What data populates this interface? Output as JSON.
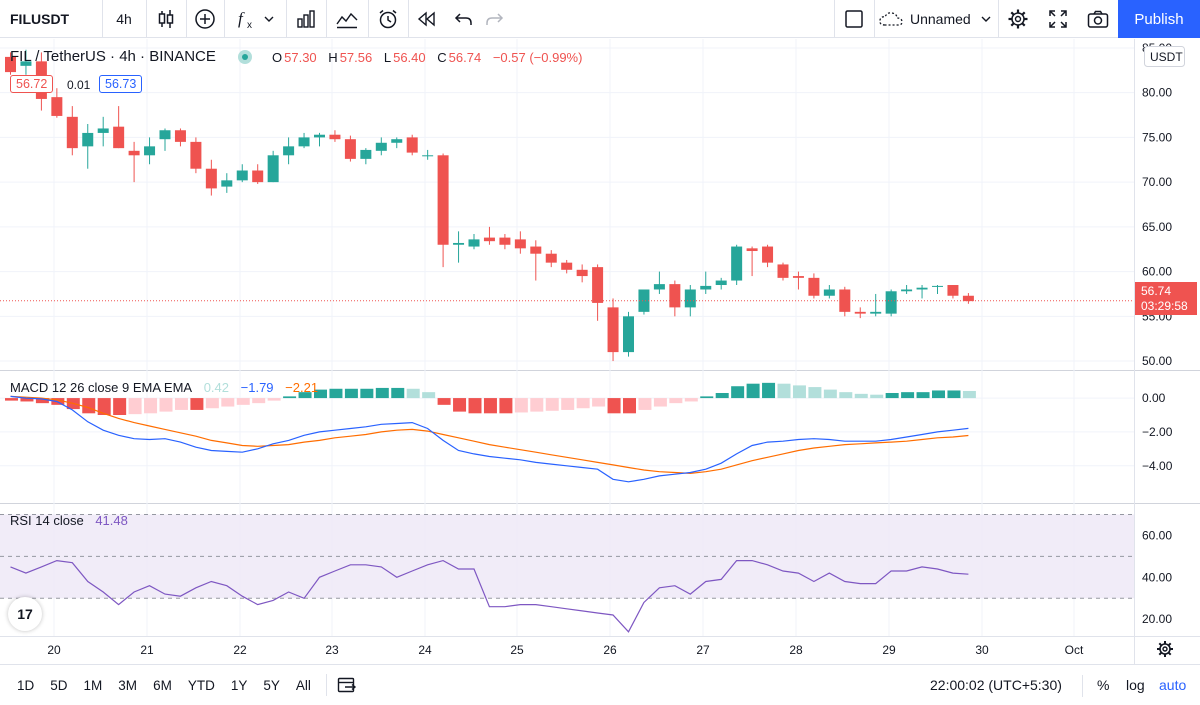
{
  "toolbar": {
    "symbol": "FILUSDT",
    "interval": "4h",
    "layout_name": "Unnamed",
    "publish_label": "Publish"
  },
  "legend": {
    "title": "FIL / TetherUS · 4h · BINANCE",
    "o_label": "O",
    "o": "57.30",
    "h_label": "H",
    "h": "57.56",
    "l_label": "L",
    "l": "56.40",
    "c_label": "C",
    "c": "56.74",
    "change": "−0.57 (−0.99%)",
    "bid": "56.72",
    "spread": "0.01",
    "ask": "56.73"
  },
  "price_axis": {
    "currency": "USDT",
    "last_price": "56.74",
    "countdown": "03:29:58"
  },
  "macd_legend": {
    "title": "MACD 12 26 close 9 EMA EMA",
    "hist": "0.42",
    "macd": "−1.79",
    "signal": "−2.21"
  },
  "rsi_legend": {
    "title": "RSI 14 close",
    "value": "41.48"
  },
  "bottom": {
    "ranges": [
      "1D",
      "5D",
      "1M",
      "3M",
      "6M",
      "YTD",
      "1Y",
      "5Y",
      "All"
    ],
    "time": "22:00:02 (UTC+5:30)",
    "percent": "%",
    "log": "log",
    "auto": "auto"
  },
  "logo": "17",
  "colors": {
    "up": "#26a69a",
    "down": "#ef5350",
    "macd_line": "#2962ff",
    "signal_line": "#ff6d00",
    "rsi_line": "#7e57c2",
    "rsi_band": "#ede7f6",
    "hist_up_strong": "#26a69a",
    "hist_up_weak": "#b2dfdb",
    "hist_down_strong": "#ef5350",
    "hist_down_weak": "#ffcdd2",
    "accent": "#2962ff"
  },
  "chart_data": {
    "type": "candlestick",
    "symbol": "FIL / TetherUS",
    "interval": "4h",
    "exchange": "BINANCE",
    "x_tick_labels": [
      "20",
      "21",
      "22",
      "23",
      "24",
      "25",
      "26",
      "27",
      "28",
      "29",
      "30",
      "Oct"
    ],
    "price_ticks": [
      "85.00",
      "80.00",
      "75.00",
      "70.00",
      "65.00",
      "60.00",
      "55.00",
      "50.00"
    ],
    "price_ylim": [
      49,
      86
    ],
    "macd_ticks": [
      "0.00",
      "−2.00",
      "−4.00"
    ],
    "macd_ylim": [
      -6.2,
      1.6
    ],
    "rsi_ticks": [
      "60.00",
      "40.00",
      "20.00"
    ],
    "rsi_ylim": [
      12,
      75
    ],
    "rsi_levels": [
      70,
      50,
      30
    ],
    "candles": [
      {
        "o": 84.0,
        "h": 84.5,
        "l": 82.0,
        "c": 82.3
      },
      {
        "o": 83.0,
        "h": 84.8,
        "l": 82.0,
        "c": 83.5
      },
      {
        "o": 83.5,
        "h": 84.5,
        "l": 78.0,
        "c": 79.3
      },
      {
        "o": 79.5,
        "h": 80.5,
        "l": 77.2,
        "c": 77.4
      },
      {
        "o": 77.3,
        "h": 78.5,
        "l": 73.0,
        "c": 73.8
      },
      {
        "o": 74.0,
        "h": 76.5,
        "l": 71.5,
        "c": 75.5
      },
      {
        "o": 75.5,
        "h": 77.3,
        "l": 74.0,
        "c": 76.0
      },
      {
        "o": 76.2,
        "h": 78.5,
        "l": 73.8,
        "c": 73.8
      },
      {
        "o": 73.5,
        "h": 74.5,
        "l": 70.0,
        "c": 73.0
      },
      {
        "o": 73.0,
        "h": 75.0,
        "l": 72.0,
        "c": 74.0
      },
      {
        "o": 74.8,
        "h": 76.0,
        "l": 73.5,
        "c": 75.8
      },
      {
        "o": 75.8,
        "h": 76.0,
        "l": 74.0,
        "c": 74.5
      },
      {
        "o": 74.5,
        "h": 75.0,
        "l": 71.0,
        "c": 71.5
      },
      {
        "o": 71.5,
        "h": 72.5,
        "l": 68.5,
        "c": 69.3
      },
      {
        "o": 69.5,
        "h": 71.0,
        "l": 68.8,
        "c": 70.2
      },
      {
        "o": 70.2,
        "h": 72.0,
        "l": 70.0,
        "c": 71.3
      },
      {
        "o": 71.3,
        "h": 72.0,
        "l": 69.8,
        "c": 70.0
      },
      {
        "o": 70.0,
        "h": 73.5,
        "l": 70.0,
        "c": 73.0
      },
      {
        "o": 73.0,
        "h": 75.0,
        "l": 72.0,
        "c": 74.0
      },
      {
        "o": 74.0,
        "h": 75.5,
        "l": 73.8,
        "c": 75.0
      },
      {
        "o": 75.0,
        "h": 75.5,
        "l": 74.0,
        "c": 75.3
      },
      {
        "o": 75.3,
        "h": 75.8,
        "l": 74.5,
        "c": 74.8
      },
      {
        "o": 74.8,
        "h": 75.2,
        "l": 72.3,
        "c": 72.6
      },
      {
        "o": 72.6,
        "h": 73.8,
        "l": 72.0,
        "c": 73.6
      },
      {
        "o": 73.5,
        "h": 75.0,
        "l": 73.0,
        "c": 74.4
      },
      {
        "o": 74.4,
        "h": 75.0,
        "l": 73.8,
        "c": 74.8
      },
      {
        "o": 75.0,
        "h": 75.3,
        "l": 73.0,
        "c": 73.3
      },
      {
        "o": 73.0,
        "h": 73.6,
        "l": 72.5,
        "c": 73.0
      },
      {
        "o": 73.0,
        "h": 73.2,
        "l": 60.5,
        "c": 63.0
      },
      {
        "o": 63.0,
        "h": 64.5,
        "l": 61.0,
        "c": 63.2
      },
      {
        "o": 62.8,
        "h": 64.2,
        "l": 62.5,
        "c": 63.6
      },
      {
        "o": 63.8,
        "h": 65.0,
        "l": 63.0,
        "c": 63.4
      },
      {
        "o": 63.8,
        "h": 64.2,
        "l": 62.5,
        "c": 63.0
      },
      {
        "o": 63.6,
        "h": 64.5,
        "l": 62.0,
        "c": 62.6
      },
      {
        "o": 62.8,
        "h": 63.5,
        "l": 59.0,
        "c": 62.0
      },
      {
        "o": 62.0,
        "h": 62.4,
        "l": 60.5,
        "c": 61.0
      },
      {
        "o": 61.0,
        "h": 61.3,
        "l": 59.8,
        "c": 60.2
      },
      {
        "o": 60.2,
        "h": 60.8,
        "l": 58.8,
        "c": 59.5
      },
      {
        "o": 60.5,
        "h": 60.8,
        "l": 54.5,
        "c": 56.5
      },
      {
        "o": 56.0,
        "h": 57.0,
        "l": 50.0,
        "c": 51.0
      },
      {
        "o": 51.0,
        "h": 55.5,
        "l": 50.5,
        "c": 55.0
      },
      {
        "o": 55.5,
        "h": 58.0,
        "l": 55.2,
        "c": 58.0
      },
      {
        "o": 58.0,
        "h": 60.0,
        "l": 57.5,
        "c": 58.6
      },
      {
        "o": 58.6,
        "h": 59.0,
        "l": 55.0,
        "c": 56.0
      },
      {
        "o": 56.0,
        "h": 58.5,
        "l": 55.0,
        "c": 58.0
      },
      {
        "o": 58.0,
        "h": 60.0,
        "l": 57.5,
        "c": 58.4
      },
      {
        "o": 58.5,
        "h": 59.3,
        "l": 58.0,
        "c": 59.0
      },
      {
        "o": 59.0,
        "h": 63.0,
        "l": 58.5,
        "c": 62.8
      },
      {
        "o": 62.6,
        "h": 62.8,
        "l": 59.5,
        "c": 62.3
      },
      {
        "o": 62.8,
        "h": 63.0,
        "l": 60.5,
        "c": 61.0
      },
      {
        "o": 60.8,
        "h": 61.0,
        "l": 59.0,
        "c": 59.3
      },
      {
        "o": 59.5,
        "h": 60.0,
        "l": 58.0,
        "c": 59.3
      },
      {
        "o": 59.3,
        "h": 59.8,
        "l": 57.0,
        "c": 57.3
      },
      {
        "o": 57.3,
        "h": 58.5,
        "l": 57.0,
        "c": 58.0
      },
      {
        "o": 58.0,
        "h": 58.3,
        "l": 55.0,
        "c": 55.5
      },
      {
        "o": 55.5,
        "h": 56.0,
        "l": 54.8,
        "c": 55.3
      },
      {
        "o": 55.3,
        "h": 57.5,
        "l": 55.0,
        "c": 55.5
      },
      {
        "o": 55.3,
        "h": 58.0,
        "l": 55.0,
        "c": 57.8
      },
      {
        "o": 57.8,
        "h": 58.5,
        "l": 57.5,
        "c": 58.0
      },
      {
        "o": 58.0,
        "h": 58.5,
        "l": 57.0,
        "c": 58.2
      },
      {
        "o": 58.3,
        "h": 58.5,
        "l": 57.5,
        "c": 58.4
      },
      {
        "o": 58.5,
        "h": 58.5,
        "l": 57.0,
        "c": 57.3
      },
      {
        "o": 57.3,
        "h": 57.6,
        "l": 56.4,
        "c": 56.7
      }
    ],
    "macd": {
      "hist": [
        -0.15,
        -0.2,
        -0.3,
        -0.4,
        -0.65,
        -0.9,
        -1.0,
        -1.0,
        -0.95,
        -0.9,
        -0.8,
        -0.7,
        -0.7,
        -0.6,
        -0.5,
        -0.4,
        -0.3,
        -0.15,
        0.1,
        0.35,
        0.5,
        0.55,
        0.55,
        0.55,
        0.6,
        0.6,
        0.55,
        0.35,
        -0.4,
        -0.8,
        -0.9,
        -0.9,
        -0.9,
        -0.85,
        -0.8,
        -0.75,
        -0.7,
        -0.6,
        -0.5,
        -0.9,
        -0.9,
        -0.7,
        -0.5,
        -0.3,
        -0.2,
        0.1,
        0.3,
        0.7,
        0.85,
        0.9,
        0.85,
        0.75,
        0.65,
        0.5,
        0.35,
        0.25,
        0.2,
        0.3,
        0.35,
        0.35,
        0.45,
        0.45,
        0.42
      ],
      "macd": [
        0.1,
        0.0,
        -0.05,
        -0.2,
        -0.7,
        -1.4,
        -1.9,
        -2.2,
        -2.4,
        -2.45,
        -2.4,
        -2.6,
        -2.9,
        -3.1,
        -3.15,
        -3.2,
        -3.0,
        -2.7,
        -2.5,
        -2.2,
        -2.0,
        -1.9,
        -1.8,
        -1.7,
        -1.55,
        -1.5,
        -1.45,
        -1.8,
        -2.5,
        -3.1,
        -3.3,
        -3.45,
        -3.55,
        -3.65,
        -3.8,
        -3.9,
        -4.0,
        -4.1,
        -4.2,
        -4.8,
        -4.95,
        -4.8,
        -4.6,
        -4.5,
        -4.4,
        -4.2,
        -3.85,
        -3.3,
        -2.8,
        -2.6,
        -2.55,
        -2.45,
        -2.4,
        -2.45,
        -2.55,
        -2.55,
        -2.55,
        -2.45,
        -2.3,
        -2.15,
        -2.0,
        -1.9,
        -1.79
      ],
      "signal": [
        0.1,
        0.05,
        0.0,
        -0.1,
        -0.3,
        -0.55,
        -0.9,
        -1.2,
        -1.45,
        -1.65,
        -1.85,
        -2.05,
        -2.25,
        -2.5,
        -2.65,
        -2.8,
        -2.85,
        -2.8,
        -2.75,
        -2.6,
        -2.5,
        -2.35,
        -2.25,
        -2.15,
        -2.0,
        -1.9,
        -1.85,
        -1.95,
        -2.15,
        -2.35,
        -2.55,
        -2.75,
        -2.9,
        -3.05,
        -3.2,
        -3.35,
        -3.5,
        -3.65,
        -3.8,
        -3.95,
        -4.1,
        -4.25,
        -4.35,
        -4.4,
        -4.45,
        -4.35,
        -4.2,
        -3.95,
        -3.7,
        -3.5,
        -3.3,
        -3.1,
        -2.95,
        -2.85,
        -2.75,
        -2.7,
        -2.65,
        -2.6,
        -2.55,
        -2.45,
        -2.35,
        -2.3,
        -2.21
      ]
    },
    "rsi": [
      45,
      42,
      45,
      48,
      47,
      38,
      33,
      27,
      33,
      36,
      32,
      31,
      35,
      38,
      36,
      31,
      27,
      29,
      33,
      30,
      40,
      43,
      46,
      46,
      45,
      40,
      43,
      46,
      48,
      44,
      44,
      26,
      26,
      27,
      27,
      26,
      25,
      24,
      23,
      22,
      14,
      28,
      35,
      36,
      32,
      38,
      39,
      48,
      48,
      46,
      43,
      42,
      38,
      42,
      38,
      37,
      37,
      43,
      43,
      45,
      44,
      42,
      41.48
    ]
  }
}
